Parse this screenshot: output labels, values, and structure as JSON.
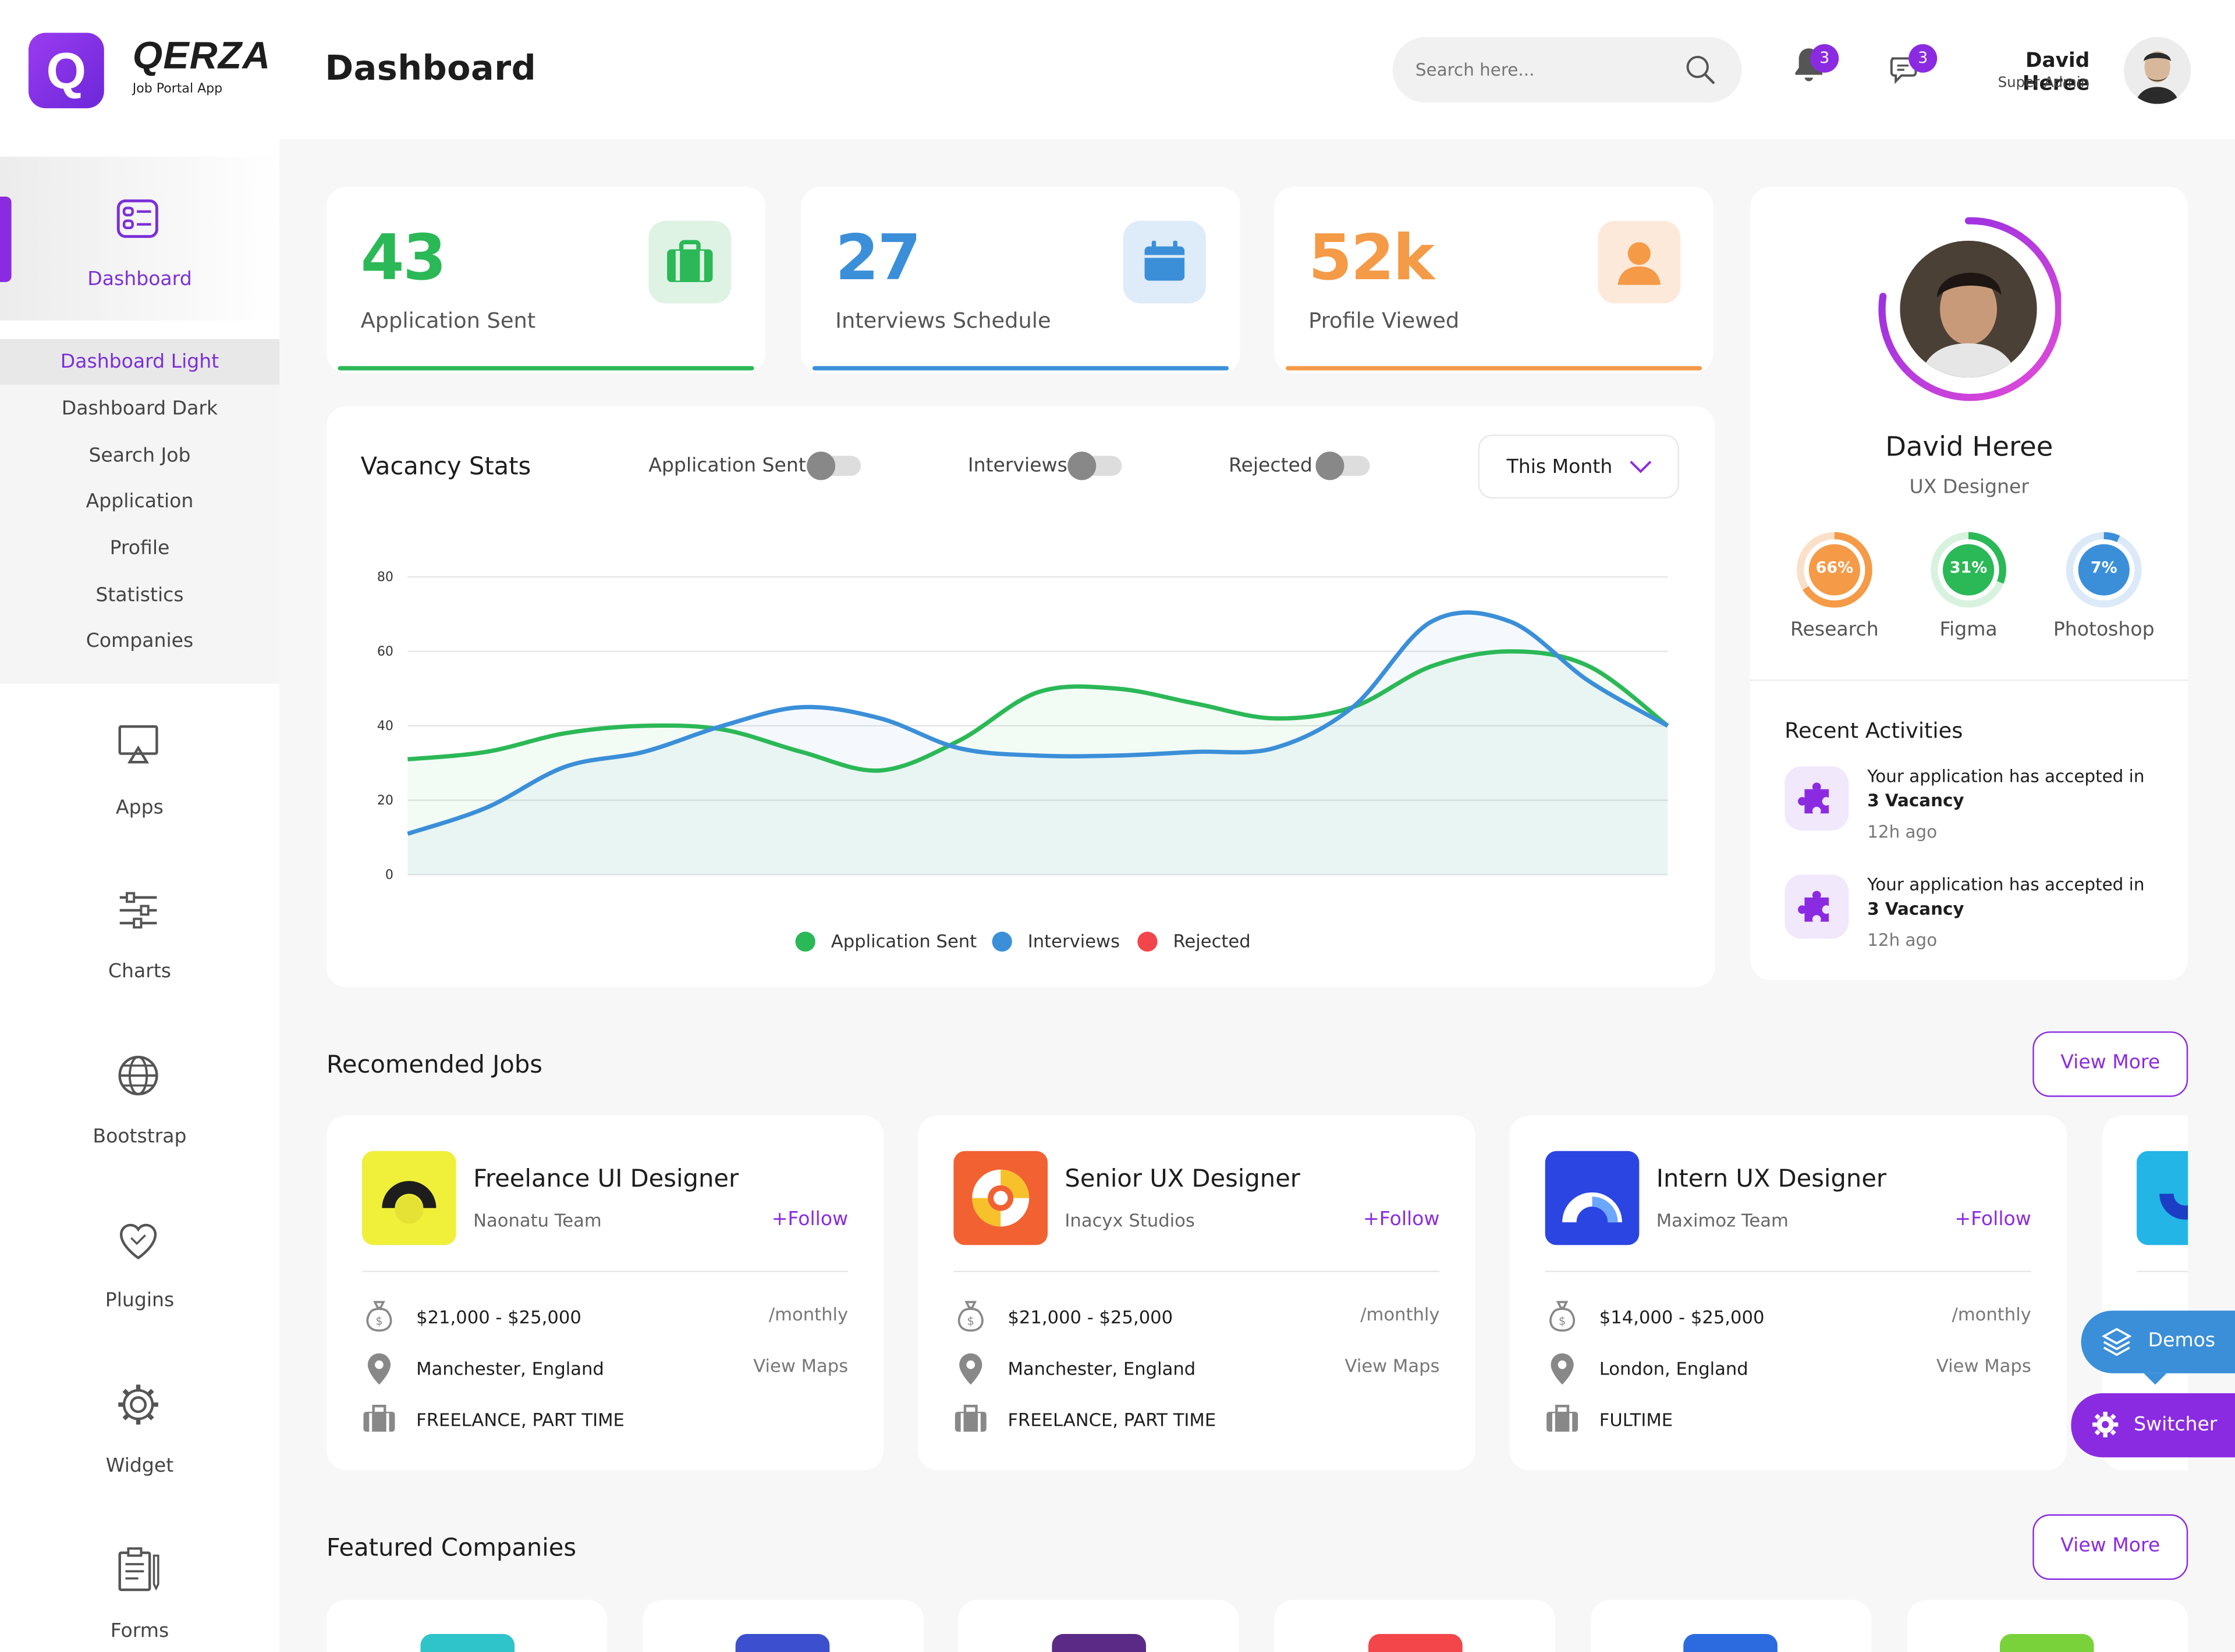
{
  "brand": {
    "logo_letter": "Q",
    "name": "QERZA",
    "tagline": "Job Portal App",
    "accent": "#8a2be2"
  },
  "header": {
    "title": "Dashboard",
    "search_placeholder": "Search here...",
    "notifications_count": "3",
    "messages_count": "3",
    "user_name": "David Heree",
    "user_role": "Super Admin"
  },
  "sidebar": {
    "dashboard_label": "Dashboard",
    "submenu": [
      "Dashboard Light",
      "Dashboard Dark",
      "Search Job",
      "Application",
      "Profile",
      "Statistics",
      "Companies"
    ],
    "items": [
      {
        "label": "Apps",
        "icon": "monitor-icon"
      },
      {
        "label": "Charts",
        "icon": "sliders-icon"
      },
      {
        "label": "Bootstrap",
        "icon": "globe-icon"
      },
      {
        "label": "Plugins",
        "icon": "heart-icon"
      },
      {
        "label": "Widget",
        "icon": "gear-icon"
      },
      {
        "label": "Forms",
        "icon": "clipboard-icon"
      }
    ]
  },
  "stats": [
    {
      "value": "43",
      "label": "Application Sent",
      "color": "#2bb856",
      "icon": "briefcase-icon"
    },
    {
      "value": "27",
      "label": "Interviews Schedule",
      "color": "#3b8fd9",
      "icon": "calendar-icon"
    },
    {
      "value": "52k",
      "label": "Profile Viewed",
      "color": "#f59a47",
      "icon": "user-icon"
    }
  ],
  "vacancy": {
    "title": "Vacancy Stats",
    "toggles": [
      "Application Sent",
      "Interviews",
      "Rejected"
    ],
    "period": "This Month",
    "legend": [
      "Application Sent",
      "Interviews",
      "Rejected"
    ]
  },
  "chart_data": {
    "type": "line",
    "ylim": [
      0,
      80
    ],
    "yticks": [
      "0",
      "20",
      "40",
      "60",
      "80"
    ],
    "grid": true,
    "legend_position": "bottom",
    "series": [
      {
        "name": "Application Sent",
        "color": "#2bb856",
        "values": [
          31,
          33,
          38,
          40,
          39,
          33,
          28,
          36,
          49,
          50,
          46,
          42,
          45,
          56,
          60,
          56,
          40
        ]
      },
      {
        "name": "Interviews",
        "color": "#3b8fd9",
        "values": [
          11,
          18,
          29,
          33,
          40,
          45,
          42,
          34,
          32,
          32,
          33,
          34,
          45,
          68,
          68,
          52,
          40
        ]
      },
      {
        "name": "Rejected",
        "color": "#f2464b",
        "values": []
      }
    ]
  },
  "profile": {
    "name": "David Heree",
    "role": "UX Designer",
    "skills": [
      {
        "label": "Research",
        "value": "66%",
        "pct": 66,
        "color": "#f59a47"
      },
      {
        "label": "Figma",
        "value": "31%",
        "pct": 31,
        "color": "#2bb856"
      },
      {
        "label": "Photoshop",
        "value": "7%",
        "pct": 7,
        "color": "#3b8fd9"
      }
    ]
  },
  "activities": {
    "title": "Recent Activities",
    "items": [
      {
        "text": "Your application has accepted in",
        "bold": "3 Vacancy",
        "time": "12h ago"
      },
      {
        "text": "Your application has accepted in",
        "bold": "3 Vacancy",
        "time": "12h ago"
      }
    ]
  },
  "jobs": {
    "title": "Recomended Jobs",
    "view_more": "View More",
    "items": [
      {
        "title": "Freelance UI Designer",
        "company": "Naonatu Team",
        "follow": "+Follow",
        "salary": "$21,000 - $25,000",
        "period": "/monthly",
        "location": "Manchester, England",
        "maps": "View Maps",
        "type": "FREELANCE, PART TIME"
      },
      {
        "title": "Senior UX Designer",
        "company": "Inacyx Studios",
        "follow": "+Follow",
        "salary": "$21,000 - $25,000",
        "period": "/monthly",
        "location": "Manchester, England",
        "maps": "View Maps",
        "type": "FREELANCE, PART TIME"
      },
      {
        "title": "Intern UX Designer",
        "company": "Maximoz Team",
        "follow": "+Follow",
        "salary": "$14,000 - $25,000",
        "period": "/monthly",
        "location": "London, England",
        "maps": "View Maps",
        "type": "FULTIME"
      }
    ]
  },
  "companies": {
    "title": "Featured Companies",
    "view_more": "View More"
  },
  "floating": {
    "demos": "Demos",
    "switcher": "Switcher"
  }
}
